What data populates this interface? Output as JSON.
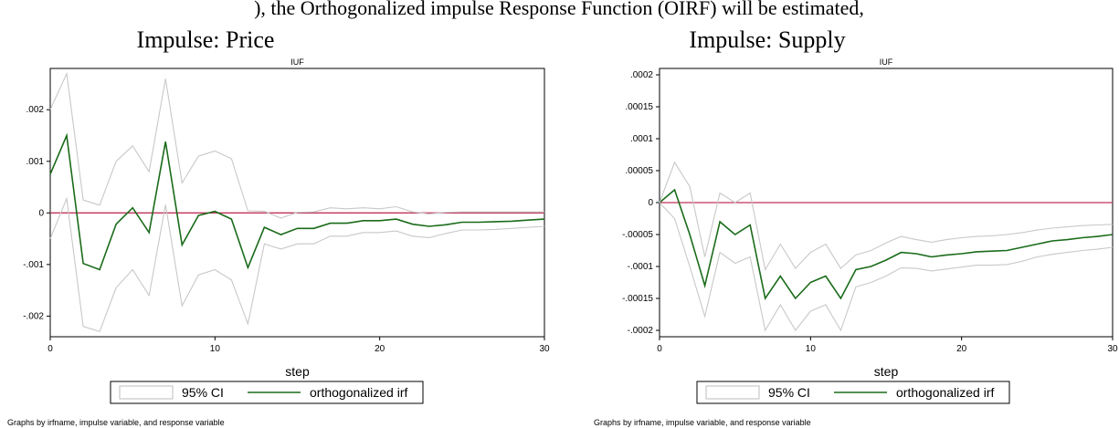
{
  "header": {
    "fragment_text": "), the Orthogonalized impulse Response Function (OIRF) will be estimated,"
  },
  "colors": {
    "ci": "#c8c8c8",
    "irf": "#1a6b1a",
    "zero_line": "#c0335a",
    "axis": "#000000"
  },
  "chart_data": [
    {
      "type": "line",
      "heading": "Impulse: Price",
      "title": "IUF",
      "xlabel": "step",
      "ylabel": "",
      "xlim": [
        0,
        30
      ],
      "ylim": [
        -0.0024,
        0.0028
      ],
      "xticks": [
        0,
        10,
        20,
        30
      ],
      "xtick_labels": [
        "0",
        "10",
        "20",
        "30"
      ],
      "yticks": [
        0.002,
        0.001,
        0,
        -0.001,
        -0.002
      ],
      "ytick_labels": [
        ".002",
        ".001",
        "0",
        "-.001",
        "-.002"
      ],
      "zero_line": 0,
      "grid": false,
      "legend_position": "bottom",
      "legend": [
        "95% CI",
        "orthogonalized irf"
      ],
      "note": "Graphs by irfname, impulse variable, and response variable",
      "x": [
        0,
        1,
        2,
        3,
        4,
        5,
        6,
        7,
        8,
        9,
        10,
        11,
        12,
        13,
        14,
        15,
        16,
        17,
        18,
        19,
        20,
        21,
        22,
        23,
        24,
        25,
        26,
        27,
        28,
        29,
        30
      ],
      "series": [
        {
          "name": "orthogonalized irf",
          "role": "irf",
          "values": [
            0.00075,
            0.0015,
            -0.00098,
            -0.0011,
            -0.00022,
            0.0001,
            -0.00038,
            0.00138,
            -0.00062,
            -5e-05,
            3e-05,
            -0.00012,
            -0.00106,
            -0.00028,
            -0.00042,
            -0.0003,
            -0.0003,
            -0.0002,
            -0.0002,
            -0.00015,
            -0.00015,
            -0.00012,
            -0.00022,
            -0.00026,
            -0.00023,
            -0.00018,
            -0.00018,
            -0.00017,
            -0.00016,
            -0.00014,
            -0.00012
          ]
        },
        {
          "name": "95% CI upper",
          "role": "ci",
          "values": [
            0.002,
            0.0027,
            0.00025,
            0.00015,
            0.001,
            0.0013,
            0.0008,
            0.0026,
            0.00058,
            0.0011,
            0.0012,
            0.00105,
            4e-05,
            3e-05,
            -0.0001,
            1e-05,
            2e-05,
            0.0001,
            8e-05,
            0.0001,
            8e-05,
            0.00012,
            2e-05,
            -2e-05,
            1e-05,
            2e-05,
            2e-05,
            2e-05,
            2e-05,
            2e-05,
            2e-05
          ]
        },
        {
          "name": "95% CI lower",
          "role": "ci",
          "values": [
            -0.0005,
            0.00028,
            -0.0022,
            -0.0023,
            -0.00145,
            -0.0011,
            -0.0016,
            0.00016,
            -0.0018,
            -0.0012,
            -0.0011,
            -0.0013,
            -0.00215,
            -0.0006,
            -0.0007,
            -0.0006,
            -0.0006,
            -0.00045,
            -0.00045,
            -0.00038,
            -0.00038,
            -0.00035,
            -0.00045,
            -0.00048,
            -0.0004,
            -0.00033,
            -0.00033,
            -0.00032,
            -0.0003,
            -0.00028,
            -0.00026
          ]
        }
      ]
    },
    {
      "type": "line",
      "heading": "Impulse: Supply",
      "title": "IUF",
      "xlabel": "step",
      "ylabel": "",
      "xlim": [
        0,
        30
      ],
      "ylim": [
        -0.00021,
        0.00021
      ],
      "xticks": [
        0,
        10,
        20,
        30
      ],
      "xtick_labels": [
        "0",
        "10",
        "20",
        "30"
      ],
      "yticks": [
        0.0002,
        0.00015,
        0.0001,
        5e-05,
        0,
        -5e-05,
        -0.0001,
        -0.00015,
        -0.0002
      ],
      "ytick_labels": [
        ".0002",
        ".00015",
        ".0001",
        ".00005",
        "0",
        "-.00005",
        "-.0001",
        "-.00015",
        "-.0002"
      ],
      "zero_line": 0,
      "grid": false,
      "legend_position": "bottom",
      "legend": [
        "95% CI",
        "orthogonalized irf"
      ],
      "note": "Graphs by irfname, impulse variable, and response variable",
      "x": [
        0,
        1,
        2,
        3,
        4,
        5,
        6,
        7,
        8,
        9,
        10,
        11,
        12,
        13,
        14,
        15,
        16,
        17,
        18,
        19,
        20,
        21,
        22,
        23,
        24,
        25,
        26,
        27,
        28,
        29,
        30
      ],
      "series": [
        {
          "name": "orthogonalized irf",
          "role": "irf",
          "values": [
            0,
            2e-05,
            -5e-05,
            -0.00013,
            -3e-05,
            -5e-05,
            -3.5e-05,
            -0.00015,
            -0.000115,
            -0.00015,
            -0.000125,
            -0.000115,
            -0.00015,
            -0.000105,
            -0.0001,
            -9e-05,
            -7.8e-05,
            -8e-05,
            -8.5e-05,
            -8.2e-05,
            -8e-05,
            -7.7e-05,
            -7.6e-05,
            -7.5e-05,
            -7e-05,
            -6.5e-05,
            -6e-05,
            -5.8e-05,
            -5.5e-05,
            -5.3e-05,
            -5e-05
          ]
        },
        {
          "name": "95% CI upper",
          "role": "ci",
          "values": [
            0,
            6.3e-05,
            2.5e-05,
            -8.5e-05,
            1.5e-05,
            0,
            1.5e-05,
            -0.000105,
            -6.5e-05,
            -0.000103,
            -7.8e-05,
            -6.5e-05,
            -0.000103,
            -8.2e-05,
            -7.5e-05,
            -6.3e-05,
            -5.3e-05,
            -5.8e-05,
            -6.2e-05,
            -5.8e-05,
            -5.5e-05,
            -5.3e-05,
            -5.2e-05,
            -5e-05,
            -4.7e-05,
            -4.3e-05,
            -4e-05,
            -3.8e-05,
            -3.6e-05,
            -3.5e-05,
            -3.4e-05
          ]
        },
        {
          "name": "95% CI lower",
          "role": "ci",
          "values": [
            0,
            -2.5e-05,
            -0.0001,
            -0.000178,
            -7.8e-05,
            -9.5e-05,
            -8.5e-05,
            -0.0002,
            -0.00016,
            -0.0002,
            -0.00017,
            -0.00016,
            -0.0002,
            -0.000132,
            -0.000125,
            -0.000115,
            -0.000102,
            -0.000103,
            -0.000107,
            -0.000104,
            -0.000101,
            -9.8e-05,
            -9.8e-05,
            -9.7e-05,
            -9.2e-05,
            -8.5e-05,
            -8.1e-05,
            -7.8e-05,
            -7.5e-05,
            -7.3e-05,
            -7e-05
          ]
        }
      ]
    }
  ]
}
